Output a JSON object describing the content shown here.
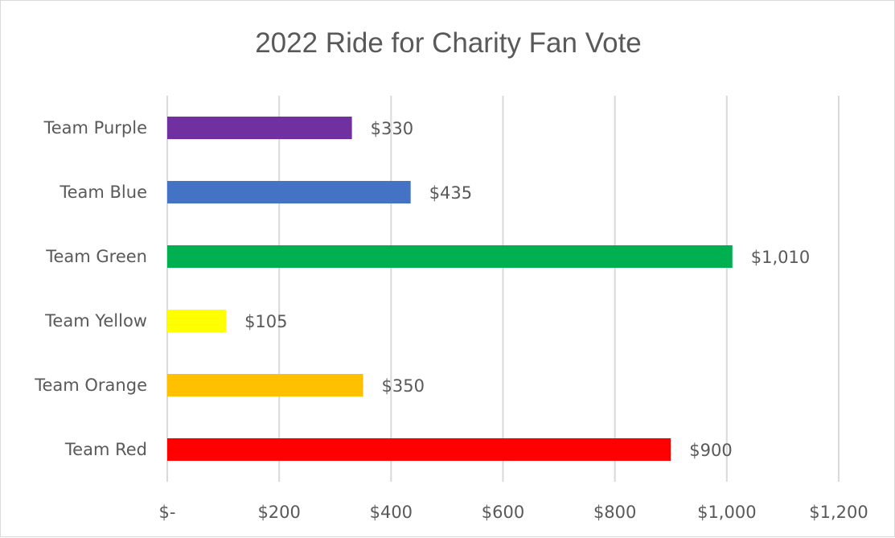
{
  "chart_data": {
    "type": "bar",
    "orientation": "horizontal",
    "title": "2022 Ride for Charity Fan Vote",
    "categories": [
      "Team Purple",
      "Team Blue",
      "Team Green",
      "Team Yellow",
      "Team Orange",
      "Team Red"
    ],
    "values": [
      330,
      435,
      1010,
      105,
      350,
      900
    ],
    "data_labels": [
      "$330",
      "$435",
      "$1,010",
      "$105",
      "$350",
      "$900"
    ],
    "colors": [
      "#7030a0",
      "#4472c4",
      "#00b050",
      "#ffff00",
      "#ffc000",
      "#ff0000"
    ],
    "xlim": [
      0,
      1200
    ],
    "x_ticks": [
      0,
      200,
      400,
      600,
      800,
      1000,
      1200
    ],
    "x_tick_labels": [
      "$-",
      "$200",
      "$400",
      "$600",
      "$800",
      "$1,000",
      "$1,200"
    ],
    "xlabel": "",
    "ylabel": "",
    "grid": "vertical",
    "legend": "none"
  }
}
